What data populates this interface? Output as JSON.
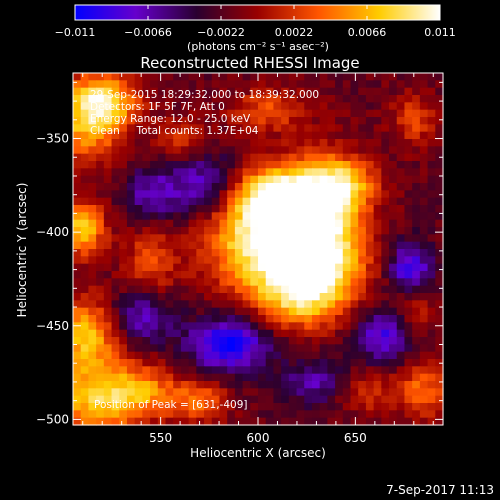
{
  "chart_data": {
    "type": "heatmap",
    "title": "Reconstructed RHESSI Image",
    "xlabel": "Heliocentric X (arcsec)",
    "ylabel": "Heliocentric Y (arcsec)",
    "xlim": [
      505,
      695
    ],
    "ylim": [
      -503,
      -315
    ],
    "xticks": [
      550,
      600,
      650
    ],
    "yticks": [
      -350,
      -400,
      -450,
      -500
    ],
    "xtick_labels": [
      "550",
      "600",
      "650"
    ],
    "ytick_labels": [
      "−350",
      "−400",
      "−450",
      "−500"
    ],
    "colorbar": {
      "range": [
        -0.011,
        0.011
      ],
      "ticks": [
        -0.011,
        -0.0066,
        -0.0022,
        0.0022,
        0.0066,
        0.011
      ],
      "tick_labels": [
        "−0.011",
        "−0.0066",
        "−0.0022",
        "0.0022",
        "0.0066",
        "0.011"
      ],
      "units_label": "(photons cm⁻² s⁻¹ asec⁻²)",
      "colors": [
        "#0000ff",
        "#6600cc",
        "#2a0030",
        "#990000",
        "#ff5500",
        "#ffcc00",
        "#ffffff"
      ]
    },
    "annotations": [
      "29-Sep-2015 18:29:32.000 to 18:39:32.000",
      "Detectors: 1F 5F 7F, Att 0",
      "Energy Range: 12.0 - 25.0 keV",
      "Clean     Total counts: 1.37E+04"
    ],
    "peak_label": "Position of Peak = [631,-409]",
    "peak": [
      631,
      -409
    ],
    "grid": false,
    "sources": [
      {
        "x": 600,
        "y": -395,
        "rx": 18,
        "ry": 18,
        "value": 0.0108
      },
      {
        "x": 633,
        "y": -398,
        "rx": 14,
        "ry": 24,
        "value": 0.011
      },
      {
        "x": 618,
        "y": -420,
        "rx": 24,
        "ry": 14,
        "value": 0.0088
      },
      {
        "x": 612,
        "y": -378,
        "rx": 18,
        "ry": 10,
        "value": 0.0072
      },
      {
        "x": 645,
        "y": -375,
        "rx": 12,
        "ry": 10,
        "value": 0.0065
      },
      {
        "x": 620,
        "y": -438,
        "rx": 14,
        "ry": 10,
        "value": 0.006
      },
      {
        "x": 512,
        "y": -340,
        "rx": 12,
        "ry": 16,
        "value": 0.0085
      },
      {
        "x": 524,
        "y": -330,
        "rx": 12,
        "ry": 10,
        "value": 0.007
      },
      {
        "x": 510,
        "y": -398,
        "rx": 8,
        "ry": 10,
        "value": 0.0095
      },
      {
        "x": 512,
        "y": -455,
        "rx": 12,
        "ry": 14,
        "value": 0.0088
      },
      {
        "x": 515,
        "y": -490,
        "rx": 18,
        "ry": 14,
        "value": 0.008
      },
      {
        "x": 540,
        "y": -485,
        "rx": 14,
        "ry": 10,
        "value": 0.006
      },
      {
        "x": 570,
        "y": -490,
        "rx": 10,
        "ry": 8,
        "value": 0.0058
      },
      {
        "x": 545,
        "y": -415,
        "rx": 10,
        "ry": 14,
        "value": 0.0045
      },
      {
        "x": 605,
        "y": -335,
        "rx": 14,
        "ry": 8,
        "value": 0.0048
      },
      {
        "x": 560,
        "y": -350,
        "rx": 10,
        "ry": 8,
        "value": 0.004
      },
      {
        "x": 685,
        "y": -485,
        "rx": 10,
        "ry": 10,
        "value": 0.006
      },
      {
        "x": 680,
        "y": -440,
        "rx": 8,
        "ry": 10,
        "value": 0.0038
      },
      {
        "x": 655,
        "y": -485,
        "rx": 10,
        "ry": 8,
        "value": 0.004
      },
      {
        "x": 680,
        "y": -340,
        "rx": 8,
        "ry": 10,
        "value": 0.0045
      },
      {
        "x": 575,
        "y": -375,
        "rx": 14,
        "ry": 12,
        "value": -0.007
      },
      {
        "x": 585,
        "y": -460,
        "rx": 14,
        "ry": 10,
        "value": -0.0095
      },
      {
        "x": 540,
        "y": -445,
        "rx": 12,
        "ry": 10,
        "value": -0.006
      },
      {
        "x": 665,
        "y": -455,
        "rx": 10,
        "ry": 10,
        "value": -0.007
      },
      {
        "x": 678,
        "y": -420,
        "rx": 8,
        "ry": 10,
        "value": -0.008
      },
      {
        "x": 545,
        "y": -380,
        "rx": 10,
        "ry": 10,
        "value": -0.005
      },
      {
        "x": 630,
        "y": -480,
        "rx": 12,
        "ry": 8,
        "value": -0.005
      }
    ]
  },
  "footer": {
    "date": "7-Sep-2017 11:13"
  }
}
